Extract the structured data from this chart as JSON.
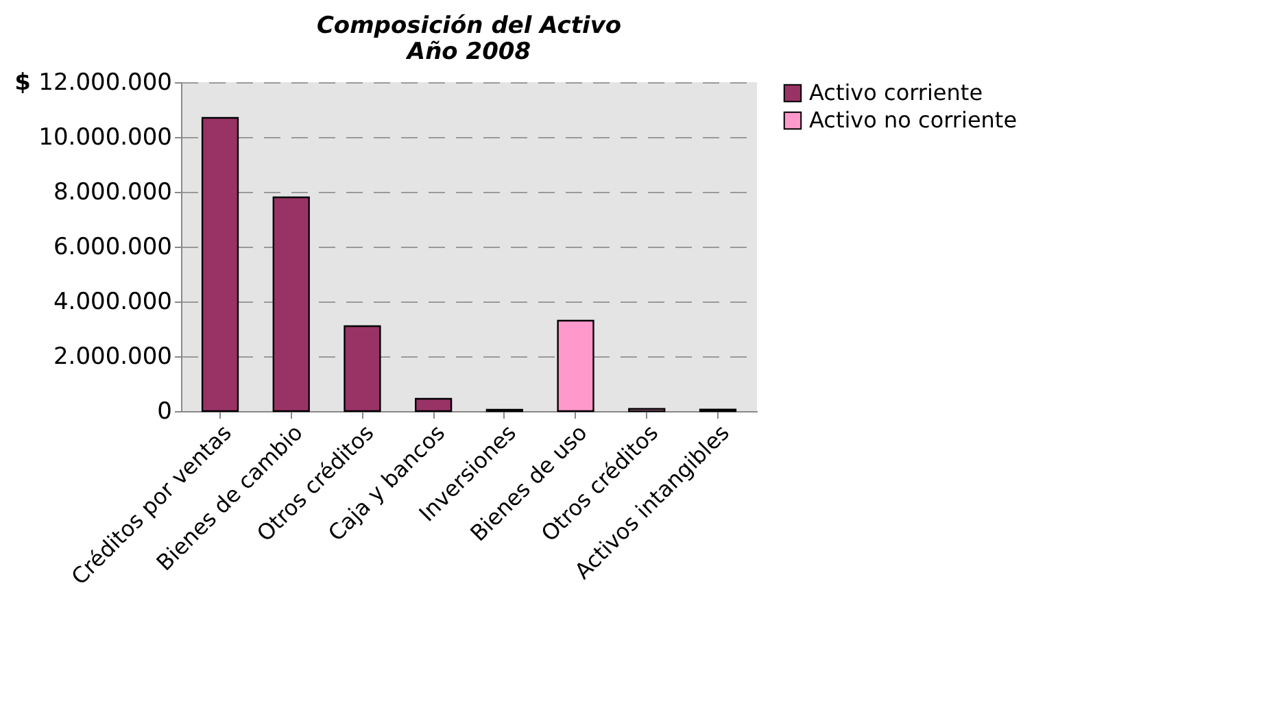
{
  "chart_data": {
    "type": "bar",
    "title": "Composición del Activo\nAño 2008",
    "ylabel": "$",
    "categories": [
      "Créditos por ventas",
      "Bienes de cambio",
      "Otros créditos",
      "Caja y bancos",
      "Inversiones",
      "Bienes de uso",
      "Otros créditos",
      "Activos intangibles"
    ],
    "series": [
      {
        "name": "Activo corriente",
        "color": "#993366",
        "values": [
          10700000,
          7800000,
          3100000,
          450000,
          50000,
          null,
          null,
          null
        ]
      },
      {
        "name": "Activo no corriente",
        "color": "#ff99cc",
        "values": [
          null,
          null,
          null,
          null,
          null,
          3300000,
          80000,
          60000
        ]
      }
    ],
    "ylim": [
      0,
      12000000
    ],
    "yticks": [
      {
        "value": 0,
        "label": "0"
      },
      {
        "value": 2000000,
        "label": "2.000.000"
      },
      {
        "value": 4000000,
        "label": "4.000.000"
      },
      {
        "value": 6000000,
        "label": "6.000.000"
      },
      {
        "value": 8000000,
        "label": "8.000.000"
      },
      {
        "value": 10000000,
        "label": "10.000.000"
      },
      {
        "value": 12000000,
        "label": "12.000.000"
      }
    ],
    "grid": "y",
    "legend": "right"
  }
}
